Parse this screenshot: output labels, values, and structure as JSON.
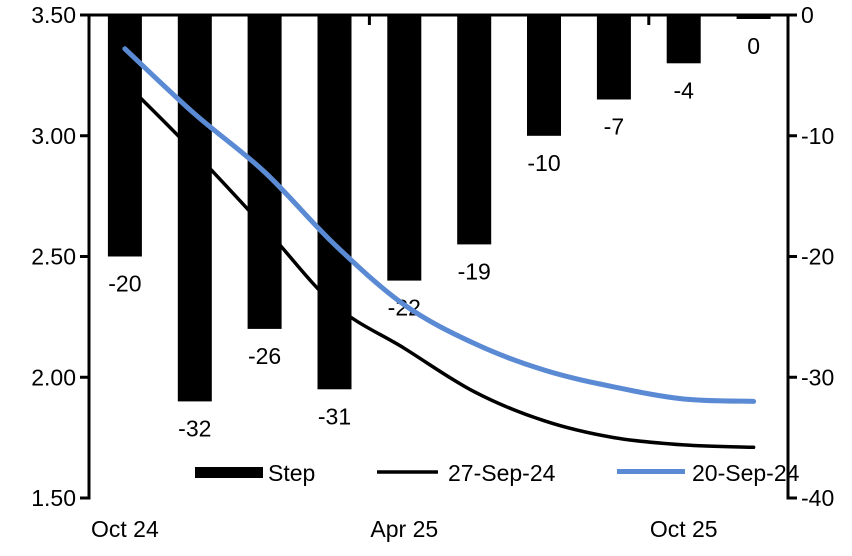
{
  "chart_data": {
    "type": "combo-bar-line",
    "title": "",
    "background": "#ffffff",
    "gridlines": false,
    "legend_position": "bottom-inside",
    "bar_series": {
      "name": "Step",
      "axis": "right",
      "color": "#000000",
      "values": [
        -20,
        -32,
        -26,
        -31,
        -22,
        -19,
        -10,
        -7,
        -4,
        0
      ],
      "data_labels": [
        "-20",
        "-32",
        "-26",
        "-31",
        "-22",
        "-19",
        "-10",
        "-7",
        "-4",
        "0"
      ]
    },
    "line_series": [
      {
        "name": "27-Sep-24",
        "axis": "left",
        "color": "#000000",
        "stroke_width": 3.5,
        "values": [
          3.22,
          2.93,
          2.62,
          2.3,
          2.12,
          1.94,
          1.82,
          1.75,
          1.72,
          1.71
        ]
      },
      {
        "name": "20-Sep-24",
        "axis": "left",
        "color": "#5B8AD4",
        "stroke_width": 5,
        "values": [
          3.36,
          3.09,
          2.85,
          2.55,
          2.3,
          2.14,
          2.03,
          1.96,
          1.91,
          1.9
        ]
      }
    ],
    "x_axis": {
      "tick_labels": [
        "Oct 24",
        "Apr 25",
        "Oct 25"
      ],
      "tick_label_category_indices": [
        0,
        4,
        8
      ],
      "boundary_tick_indices": [
        4,
        8
      ]
    },
    "left_axis": {
      "range": [
        1.5,
        3.5
      ],
      "tick_values": [
        3.5,
        3.0,
        2.5,
        2.0,
        1.5
      ],
      "tick_labels": [
        "3.50",
        "3.00",
        "2.50",
        "2.00",
        "1.50"
      ]
    },
    "right_axis": {
      "range": [
        -40,
        0
      ],
      "tick_values": [
        0,
        -10,
        -20,
        -30,
        -40
      ],
      "tick_labels": [
        "0",
        "-10",
        "-20",
        "-30",
        "-40"
      ]
    },
    "legend": [
      {
        "label": "Step",
        "marker": "bar",
        "color": "#000000"
      },
      {
        "label": "27-Sep-24",
        "marker": "line",
        "color": "#000000"
      },
      {
        "label": "20-Sep-24",
        "marker": "line",
        "color": "#5B8AD4"
      }
    ]
  }
}
